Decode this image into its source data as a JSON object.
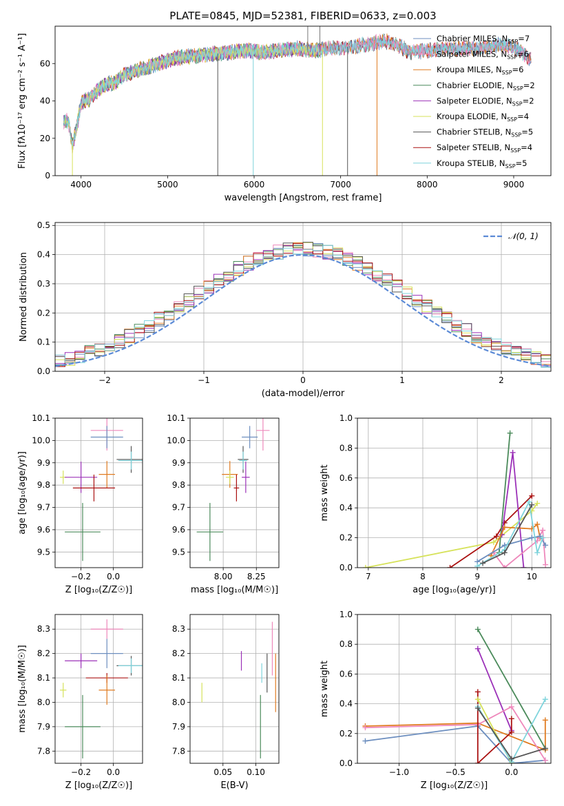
{
  "figure": {
    "title": "PLATE=0845, MJD=52381, FIBERID=0633, z=0.003"
  },
  "colors": {
    "Chabrier MILES": "#6c8ebf",
    "Salpeter MILES": "#ee88bb",
    "Kroupa MILES": "#e07b20",
    "Chabrier ELODIE": "#4a8a5a",
    "Salpeter ELODIE": "#9b30b8",
    "Kroupa ELODIE": "#d6e25a",
    "Chabrier STELIB": "#555555",
    "Salpeter STELIB": "#aa1111",
    "Kroupa STELIB": "#7fd4dc"
  },
  "chart_data": [
    {
      "id": "spectrum",
      "type": "line",
      "title": "PLATE=0845, MJD=52381, FIBERID=0633, z=0.003",
      "xlabel": "wavelength [Angstrom, rest frame]",
      "ylabel": "Flux [fλ10⁻¹⁷ erg cm⁻² s⁻¹ A⁻¹]",
      "xlim": [
        3700,
        9430
      ],
      "ylim": [
        0,
        80
      ],
      "xticks": [
        4000,
        5000,
        6000,
        7000,
        8000,
        9000
      ],
      "yticks": [
        0,
        20,
        40,
        60
      ],
      "legend": "right",
      "legend_entries": [
        "Chabrier MILES, N_SSP=7",
        "Salpeter MILES, N_SSP=6",
        "Kroupa MILES, N_SSP=6",
        "Chabrier ELODIE, N_SSP=2",
        "Salpeter ELODIE, N_SSP=2",
        "Kroupa ELODIE, N_SSP=4",
        "Chabrier STELIB, N_SSP=5",
        "Salpeter STELIB, N_SSP=4",
        "Kroupa STELIB, N_SSP=5"
      ],
      "continuum": {
        "x": [
          3800,
          3850,
          3900,
          3950,
          4000,
          4100,
          4200,
          4300,
          4400,
          4500,
          4700,
          4900,
          5100,
          5300,
          5500,
          5700,
          5900,
          6100,
          6300,
          6500,
          6700,
          6900,
          7100,
          7300,
          7500,
          7600,
          7700,
          7800,
          8000,
          8200,
          8400,
          8600,
          8800,
          9000,
          9100,
          9200
        ],
        "y": [
          28,
          30,
          16,
          26,
          39,
          41,
          46,
          49,
          50,
          54,
          57,
          60,
          63,
          64,
          65,
          66,
          67,
          66,
          67,
          68,
          67,
          68,
          69,
          70,
          72,
          71,
          69,
          66,
          67,
          68,
          68,
          68,
          70,
          69,
          66,
          62
        ]
      }
    },
    {
      "id": "residuals",
      "type": "histogram",
      "xlabel": "(data-model)/error",
      "ylabel": "Normed distribution",
      "xlim": [
        -2.5,
        2.5
      ],
      "ylim": [
        0,
        0.51
      ],
      "xticks": [
        -2,
        -1,
        0,
        1,
        2
      ],
      "yticks": [
        0.0,
        0.1,
        0.2,
        0.3,
        0.4,
        0.5
      ],
      "legend": "top-right",
      "legend_label": "𝒩(0, 1)",
      "bin_width": 0.1
    },
    {
      "id": "age_vs_Z",
      "type": "errorbar",
      "xlabel": "Z [log₁₀(Z/Z☉)]",
      "ylabel": "age  [log₁₀(age/yr)]",
      "xlim": [
        -0.36,
        0.18
      ],
      "ylim": [
        9.43,
        10.1
      ],
      "xticks": [
        -0.2,
        0.0
      ],
      "yticks": [
        9.5,
        9.6,
        9.7,
        9.8,
        9.9,
        10.0,
        10.1
      ],
      "points": [
        {
          "series": "Salpeter MILES",
          "x": -0.04,
          "y": 10.045,
          "xerr": 0.1,
          "yerr": 0.09
        },
        {
          "series": "Chabrier MILES",
          "x": -0.04,
          "y": 10.015,
          "xerr": 0.1,
          "yerr": 0.05
        },
        {
          "series": "Chabrier STELIB",
          "x": 0.11,
          "y": 9.915,
          "xerr": 0.09,
          "yerr": 0.06
        },
        {
          "series": "Kroupa STELIB",
          "x": 0.11,
          "y": 9.91,
          "xerr": 0.08,
          "yerr": 0.04
        },
        {
          "series": "Kroupa MILES",
          "x": -0.04,
          "y": 9.848,
          "xerr": 0.05,
          "yerr": 0.06
        },
        {
          "series": "Kroupa ELODIE",
          "x": -0.31,
          "y": 9.835,
          "xerr": 0.02,
          "yerr": 0.03
        },
        {
          "series": "Salpeter ELODIE",
          "x": -0.2,
          "y": 9.835,
          "xerr": 0.1,
          "yerr": 0.07
        },
        {
          "series": "Salpeter STELIB",
          "x": -0.12,
          "y": 9.787,
          "xerr": 0.13,
          "yerr": 0.06
        },
        {
          "series": "Chabrier ELODIE",
          "x": -0.19,
          "y": 9.59,
          "xerr": 0.11,
          "yerr": 0.13
        }
      ]
    },
    {
      "id": "age_vs_mass",
      "type": "errorbar",
      "xlabel": "mass [log₁₀(M/M☉)]",
      "ylabel": "",
      "xlim": [
        7.75,
        8.42
      ],
      "ylim": [
        9.43,
        10.1
      ],
      "xticks": [
        8.0,
        8.25
      ],
      "yticks": [
        9.5,
        9.6,
        9.7,
        9.8,
        9.9,
        10.0,
        10.1
      ],
      "points": [
        {
          "series": "Salpeter MILES",
          "x": 8.3,
          "y": 10.045,
          "xerr": 0.05,
          "yerr": 0.09
        },
        {
          "series": "Chabrier MILES",
          "x": 8.2,
          "y": 10.015,
          "xerr": 0.06,
          "yerr": 0.05
        },
        {
          "series": "Chabrier STELIB",
          "x": 8.15,
          "y": 9.915,
          "xerr": 0.04,
          "yerr": 0.06
        },
        {
          "series": "Kroupa STELIB",
          "x": 8.15,
          "y": 9.91,
          "xerr": 0.03,
          "yerr": 0.04
        },
        {
          "series": "Kroupa MILES",
          "x": 8.05,
          "y": 9.848,
          "xerr": 0.06,
          "yerr": 0.06
        },
        {
          "series": "Kroupa ELODIE",
          "x": 8.05,
          "y": 9.835,
          "xerr": 0.03,
          "yerr": 0.03
        },
        {
          "series": "Salpeter ELODIE",
          "x": 8.17,
          "y": 9.835,
          "xerr": 0.03,
          "yerr": 0.07
        },
        {
          "series": "Salpeter STELIB",
          "x": 8.1,
          "y": 9.787,
          "xerr": 0.02,
          "yerr": 0.06
        },
        {
          "series": "Chabrier ELODIE",
          "x": 7.9,
          "y": 9.59,
          "xerr": 0.1,
          "yerr": 0.13
        }
      ]
    },
    {
      "id": "weight_vs_age",
      "type": "line",
      "xlabel": "age  [log₁₀(age/yr)]",
      "ylabel": "mass weight",
      "xlim": [
        6.8,
        10.35
      ],
      "ylim": [
        0,
        1.0
      ],
      "xticks": [
        7,
        8,
        9,
        10
      ],
      "yticks": [
        0.0,
        0.2,
        0.4,
        0.6,
        0.8,
        1.0
      ],
      "series": [
        {
          "name": "Kroupa ELODIE",
          "x": [
            6.95,
            9.3,
            10.0,
            10.1
          ],
          "y": [
            0.0,
            0.17,
            0.38,
            0.43
          ]
        },
        {
          "name": "Salpeter STELIB",
          "x": [
            8.5,
            9.35,
            9.5,
            10.0
          ],
          "y": [
            0.0,
            0.21,
            0.3,
            0.48
          ]
        },
        {
          "name": "Chabrier ELODIE",
          "x": [
            9.4,
            9.6
          ],
          "y": [
            0.1,
            0.9
          ]
        },
        {
          "name": "Salpeter ELODIE",
          "x": [
            9.45,
            9.65,
            9.85
          ],
          "y": [
            0.22,
            0.77,
            0.0
          ]
        },
        {
          "name": "Kroupa MILES",
          "x": [
            9.25,
            9.5,
            10.0,
            10.1,
            10.15
          ],
          "y": [
            0.08,
            0.27,
            0.26,
            0.29,
            0.2
          ]
        },
        {
          "name": "Salpeter MILES",
          "x": [
            9.3,
            9.5,
            10.1,
            10.2,
            10.25
          ],
          "y": [
            0.1,
            0.0,
            0.18,
            0.25,
            0.02
          ]
        },
        {
          "name": "Chabrier MILES",
          "x": [
            9.0,
            9.5,
            10.0,
            10.15,
            10.25
          ],
          "y": [
            0.04,
            0.15,
            0.2,
            0.21,
            0.15
          ]
        },
        {
          "name": "Kroupa STELIB",
          "x": [
            9.0,
            9.5,
            9.95,
            10.1,
            10.2
          ],
          "y": [
            0.01,
            0.12,
            0.44,
            0.1,
            0.2
          ]
        },
        {
          "name": "Chabrier STELIB",
          "x": [
            9.1,
            9.5,
            10.0
          ],
          "y": [
            0.03,
            0.1,
            0.42
          ]
        }
      ]
    },
    {
      "id": "mass_vs_Z",
      "type": "errorbar",
      "xlabel": "Z [log₁₀(Z/Z☉)]",
      "ylabel": "mass [log₁₀(M/M☉)]",
      "xlim": [
        -0.36,
        0.18
      ],
      "ylim": [
        7.75,
        8.36
      ],
      "xticks": [
        -0.2,
        0.0
      ],
      "yticks": [
        7.8,
        7.9,
        8.0,
        8.1,
        8.2,
        8.3
      ],
      "points": [
        {
          "series": "Salpeter MILES",
          "x": -0.04,
          "y": 8.3,
          "xerr": 0.1,
          "yerr": 0.04
        },
        {
          "series": "Chabrier MILES",
          "x": -0.04,
          "y": 8.2,
          "xerr": 0.1,
          "yerr": 0.06
        },
        {
          "series": "Salpeter ELODIE",
          "x": -0.2,
          "y": 8.17,
          "xerr": 0.1,
          "yerr": 0.03
        },
        {
          "series": "Chabrier STELIB",
          "x": 0.11,
          "y": 8.15,
          "xerr": 0.09,
          "yerr": 0.04
        },
        {
          "series": "Kroupa STELIB",
          "x": 0.11,
          "y": 8.15,
          "xerr": 0.08,
          "yerr": 0.03
        },
        {
          "series": "Salpeter STELIB",
          "x": -0.04,
          "y": 8.1,
          "xerr": 0.13,
          "yerr": 0.02
        },
        {
          "series": "Kroupa MILES",
          "x": -0.04,
          "y": 8.05,
          "xerr": 0.05,
          "yerr": 0.06
        },
        {
          "series": "Kroupa ELODIE",
          "x": -0.31,
          "y": 8.05,
          "xerr": 0.02,
          "yerr": 0.03
        },
        {
          "series": "Chabrier ELODIE",
          "x": -0.19,
          "y": 7.9,
          "xerr": 0.11,
          "yerr": 0.13
        }
      ]
    },
    {
      "id": "mass_vs_EBV",
      "type": "errorbar",
      "xlabel": "E(B-V)",
      "ylabel": "",
      "xlim": [
        0.0,
        0.135
      ],
      "ylim": [
        7.75,
        8.36
      ],
      "xticks": [
        0.05,
        0.1
      ],
      "yticks": [
        7.8,
        7.9,
        8.0,
        8.1,
        8.2,
        8.3
      ],
      "points": [
        {
          "series": "Salpeter MILES",
          "x": 0.125,
          "y": 8.22,
          "xerr": 0.0,
          "yerr": 0.11
        },
        {
          "series": "Kroupa MILES",
          "x": 0.13,
          "y": 8.08,
          "xerr": 0.0,
          "yerr": 0.12
        },
        {
          "series": "Chabrier STELIB",
          "x": 0.117,
          "y": 8.12,
          "xerr": 0.0,
          "yerr": 0.08
        },
        {
          "series": "Kroupa STELIB",
          "x": 0.109,
          "y": 8.12,
          "xerr": 0.0,
          "yerr": 0.04
        },
        {
          "series": "Salpeter ELODIE",
          "x": 0.078,
          "y": 8.17,
          "xerr": 0.0,
          "yerr": 0.04
        },
        {
          "series": "Kroupa ELODIE",
          "x": 0.018,
          "y": 8.04,
          "xerr": 0.0,
          "yerr": 0.04
        },
        {
          "series": "Chabrier ELODIE",
          "x": 0.107,
          "y": 7.9,
          "xerr": 0.0,
          "yerr": 0.13
        }
      ]
    },
    {
      "id": "weight_vs_Z",
      "type": "line",
      "xlabel": "Z [log₁₀(Z/Z☉)]",
      "ylabel": "mass weight",
      "xlim": [
        -1.37,
        0.35
      ],
      "ylim": [
        0,
        1.0
      ],
      "xticks": [
        -1.0,
        -0.5,
        0.0
      ],
      "yticks": [
        0.0,
        0.2,
        0.4,
        0.6,
        0.8,
        1.0
      ],
      "series": [
        {
          "name": "Chabrier ELODIE",
          "x": [
            -0.3,
            0.3
          ],
          "y": [
            0.9,
            0.1
          ]
        },
        {
          "name": "Salpeter ELODIE",
          "x": [
            -0.3,
            0.0
          ],
          "y": [
            0.77,
            0.22
          ]
        },
        {
          "name": "Kroupa MILES",
          "x": [
            -1.3,
            -0.3,
            0.3,
            0.3
          ],
          "y": [
            0.25,
            0.27,
            0.09,
            0.29
          ]
        },
        {
          "name": "Chabrier MILES",
          "x": [
            -1.3,
            -0.3,
            0.0,
            0.3
          ],
          "y": [
            0.15,
            0.25,
            0.0,
            0.02
          ]
        },
        {
          "name": "Salpeter MILES",
          "x": [
            -1.3,
            -0.3,
            0.0,
            0.3
          ],
          "y": [
            0.24,
            0.26,
            0.38,
            0.02
          ]
        },
        {
          "name": "Salpeter STELIB",
          "x": [
            -0.3,
            -0.3,
            0.0,
            0.0
          ],
          "y": [
            0.48,
            0.0,
            0.21,
            0.3
          ]
        },
        {
          "name": "Kroupa ELODIE",
          "x": [
            -0.3,
            0.0
          ],
          "y": [
            0.43,
            0.0
          ]
        },
        {
          "name": "Kroupa STELIB",
          "x": [
            -0.3,
            0.0,
            0.3
          ],
          "y": [
            0.38,
            0.01,
            0.43
          ]
        },
        {
          "name": "Chabrier STELIB",
          "x": [
            -0.3,
            0.0,
            0.3
          ],
          "y": [
            0.37,
            0.03,
            0.1
          ]
        }
      ]
    }
  ]
}
